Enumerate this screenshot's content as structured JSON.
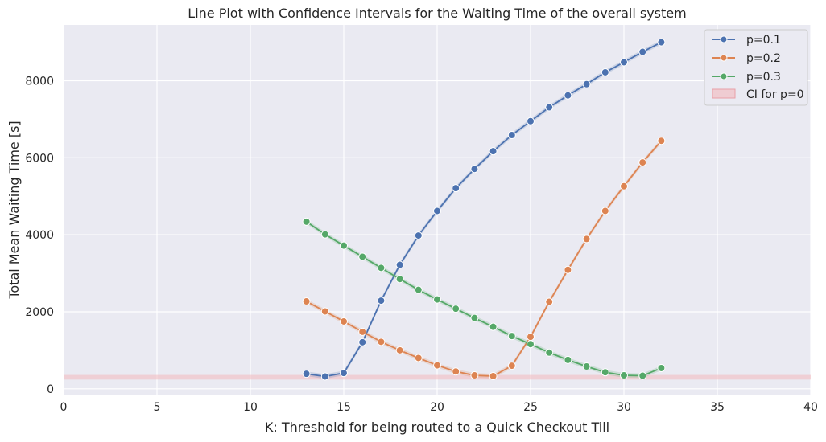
{
  "chart_data": {
    "type": "line",
    "title": "Line Plot with Confidence Intervals for the Waiting Time of the overall system",
    "xlabel": "K: Threshold for being routed to a Quick Checkout Till",
    "ylabel": "Total Mean Waiting Time [s]",
    "xlim": [
      0,
      40
    ],
    "ylim": [
      -150,
      9450
    ],
    "xticks": [
      0,
      5,
      10,
      15,
      20,
      25,
      30,
      35,
      40
    ],
    "yticks": [
      0,
      2000,
      4000,
      6000,
      8000
    ],
    "grid": true,
    "legend_position": "top-right",
    "x": [
      13,
      14,
      15,
      16,
      17,
      18,
      19,
      20,
      21,
      22,
      23,
      24,
      25,
      26,
      27,
      28,
      29,
      30,
      31,
      32
    ],
    "series": [
      {
        "name": "p=0.1",
        "color": "#4c72b0",
        "values": [
          390,
          320,
          410,
          1210,
          2290,
          3220,
          3980,
          4620,
          5210,
          5710,
          6170,
          6590,
          6950,
          7310,
          7620,
          7910,
          8220,
          8480,
          8750,
          9000
        ]
      },
      {
        "name": "p=0.2",
        "color": "#dd8452",
        "values": [
          2270,
          2010,
          1750,
          1480,
          1220,
          1000,
          800,
          610,
          450,
          350,
          330,
          600,
          1350,
          2260,
          3090,
          3890,
          4620,
          5260,
          5880,
          6440
        ]
      },
      {
        "name": "p=0.3",
        "color": "#55a868",
        "values": [
          4340,
          4010,
          3720,
          3430,
          3140,
          2850,
          2570,
          2320,
          2080,
          1840,
          1610,
          1370,
          1160,
          940,
          750,
          580,
          430,
          350,
          340,
          540
        ]
      }
    ],
    "ci_band": {
      "name": "CI for p=0",
      "color": "#f2b8bd",
      "range": [
        240,
        360
      ]
    }
  }
}
